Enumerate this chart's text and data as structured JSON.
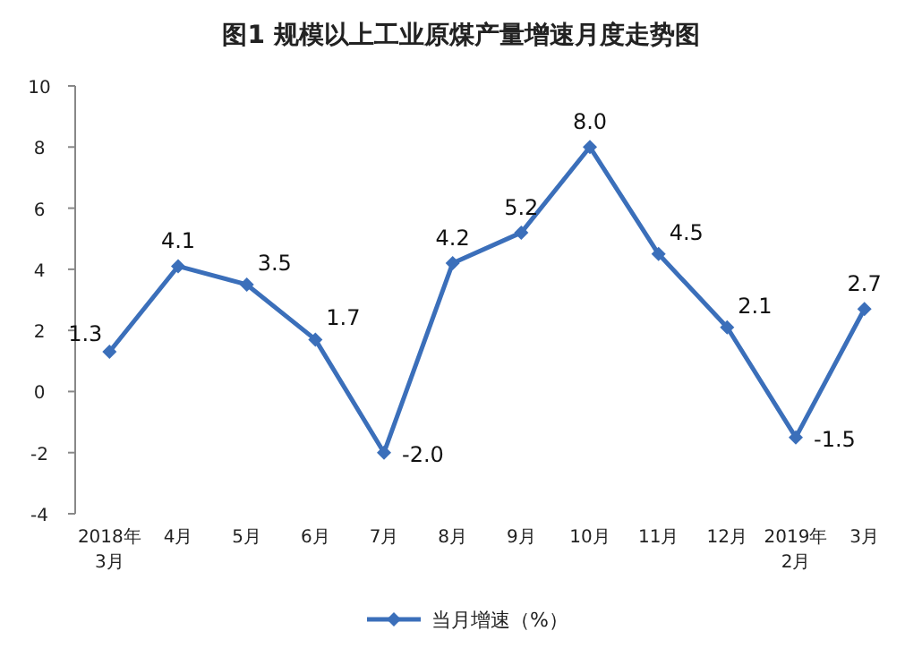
{
  "chart_data": {
    "type": "line",
    "title": "图1  规模以上工业原煤产量增速月度走势图",
    "categories": [
      "2018年3月",
      "4月",
      "5月",
      "6月",
      "7月",
      "8月",
      "9月",
      "10月",
      "11月",
      "12月",
      "2019年2月",
      "3月"
    ],
    "series": [
      {
        "name": "当月增速（%）",
        "color": "#3b6fba",
        "values": [
          1.3,
          4.1,
          3.5,
          1.7,
          -2.0,
          4.2,
          5.2,
          8.0,
          4.5,
          2.1,
          -1.5,
          2.7
        ],
        "value_labels": [
          "1.3",
          "4.1",
          "3.5",
          "1.7",
          "-2.0",
          "4.2",
          "5.2",
          "8.0",
          "4.5",
          "2.1",
          "-1.5",
          "2.7"
        ]
      }
    ],
    "ylim": [
      -4,
      10
    ],
    "yticks": [
      -4,
      -2,
      0,
      2,
      4,
      6,
      8,
      10
    ],
    "marker": "diamond",
    "line_style": "solid",
    "legend": "bottom",
    "grid": false
  }
}
